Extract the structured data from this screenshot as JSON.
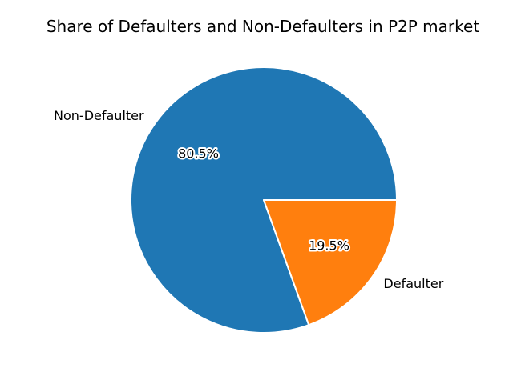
{
  "chart_data": {
    "type": "pie",
    "title": "Share of Defaulters and Non-Defaulters in P2P market",
    "labels": [
      "Non-Defaulter",
      "Defaulter"
    ],
    "values": [
      80.5,
      19.5
    ],
    "value_labels": [
      "80.5%",
      "19.5%"
    ],
    "colors": [
      "#1f77b4",
      "#ff7f0e"
    ],
    "start_angle_degrees": 0,
    "direction": "counterclockwise",
    "edge_color": "#ffffff"
  }
}
